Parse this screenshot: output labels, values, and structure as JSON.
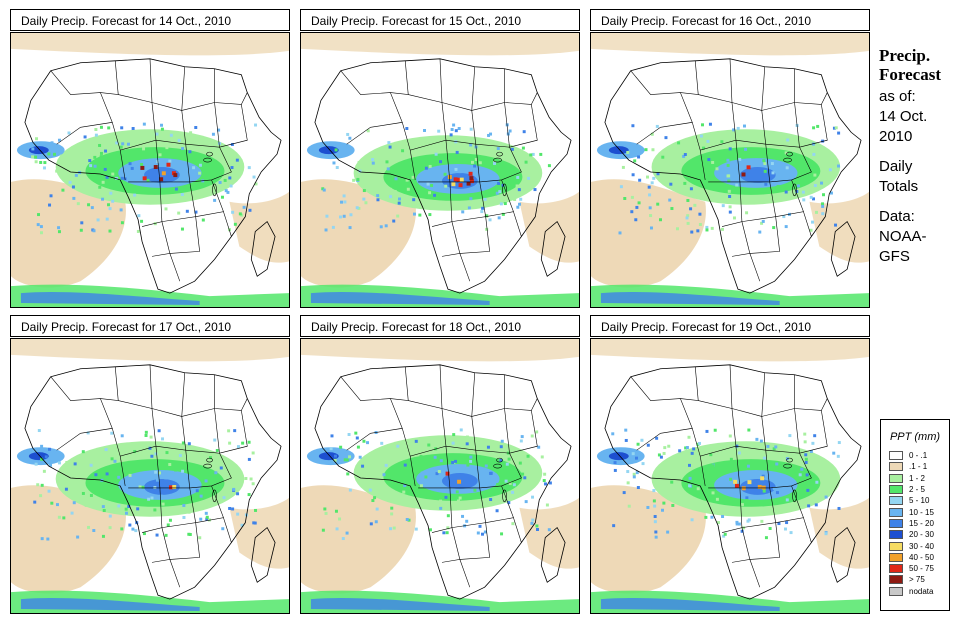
{
  "panels": [
    {
      "title": "Daily Precip. Forecast for  14 Oct., 2010"
    },
    {
      "title": "Daily Precip. Forecast for  15 Oct., 2010"
    },
    {
      "title": "Daily Precip. Forecast for  16 Oct., 2010"
    },
    {
      "title": "Daily Precip. Forecast for  17 Oct., 2010"
    },
    {
      "title": "Daily Precip. Forecast for  18 Oct., 2010"
    },
    {
      "title": "Daily Precip. Forecast for  19 Oct., 2010"
    }
  ],
  "sidebar": {
    "heading1": "Precip.",
    "heading2": "Forecast",
    "asof": "as of:",
    "date1": "14 Oct.",
    "date2": "2010",
    "daily1": "Daily",
    "daily2": "Totals",
    "data1": "Data:",
    "data2": "NOAA-",
    "data3": "GFS"
  },
  "legend": {
    "title": "PPT (mm)",
    "items": [
      {
        "label": "0 - .1",
        "color": "#ffffff"
      },
      {
        "label": ".1 - 1",
        "color": "#eed9b7"
      },
      {
        "label": "1 - 2",
        "color": "#a8f0a0"
      },
      {
        "label": "2 - 5",
        "color": "#52e66a"
      },
      {
        "label": "5 - 10",
        "color": "#94d6f2"
      },
      {
        "label": "10 - 15",
        "color": "#68b4f0"
      },
      {
        "label": "15 - 20",
        "color": "#3f82e8"
      },
      {
        "label": "20 - 30",
        "color": "#1d4fd0"
      },
      {
        "label": "30 - 40",
        "color": "#f6dc62"
      },
      {
        "label": "40 - 50",
        "color": "#f2a12a"
      },
      {
        "label": "50 - 75",
        "color": "#e02818"
      },
      {
        "label": "> 75",
        "color": "#8e1a12"
      },
      {
        "label": "nodata",
        "color": "#c8c8c8"
      }
    ]
  }
}
